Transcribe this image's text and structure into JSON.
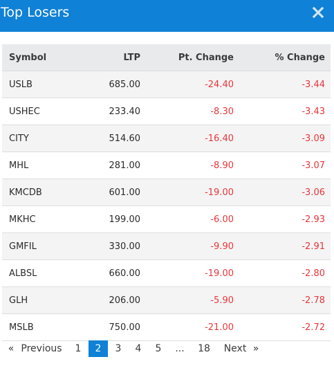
{
  "modal": {
    "title": "Top Losers",
    "close_icon": "×"
  },
  "colors": {
    "header": "#0f81d6",
    "negative": "#e8363b",
    "active_page": "#0f81d6"
  },
  "table": {
    "headers": {
      "symbol": "Symbol",
      "ltp": "LTP",
      "pt_change": "Pt. Change",
      "pct_change": "% Change"
    },
    "rows": [
      {
        "symbol": "USLB",
        "ltp": "685.00",
        "pt_change": "-24.40",
        "pct_change": "-3.44"
      },
      {
        "symbol": "USHEC",
        "ltp": "233.40",
        "pt_change": "-8.30",
        "pct_change": "-3.43"
      },
      {
        "symbol": "CITY",
        "ltp": "514.60",
        "pt_change": "-16.40",
        "pct_change": "-3.09"
      },
      {
        "symbol": "MHL",
        "ltp": "281.00",
        "pt_change": "-8.90",
        "pct_change": "-3.07"
      },
      {
        "symbol": "KMCDB",
        "ltp": "601.00",
        "pt_change": "-19.00",
        "pct_change": "-3.06"
      },
      {
        "symbol": "MKHC",
        "ltp": "199.00",
        "pt_change": "-6.00",
        "pct_change": "-2.93"
      },
      {
        "symbol": "GMFIL",
        "ltp": "330.00",
        "pt_change": "-9.90",
        "pct_change": "-2.91"
      },
      {
        "symbol": "ALBSL",
        "ltp": "660.00",
        "pt_change": "-19.00",
        "pct_change": "-2.80"
      },
      {
        "symbol": "GLH",
        "ltp": "206.00",
        "pt_change": "-5.90",
        "pct_change": "-2.78"
      },
      {
        "symbol": "MSLB",
        "ltp": "750.00",
        "pt_change": "-21.00",
        "pct_change": "-2.72"
      }
    ]
  },
  "pagination": {
    "first": "«",
    "previous": "Previous",
    "pages": [
      "1",
      "2",
      "3",
      "4",
      "5",
      "...",
      "18"
    ],
    "active_page": "2",
    "next": "Next",
    "last": "»"
  }
}
